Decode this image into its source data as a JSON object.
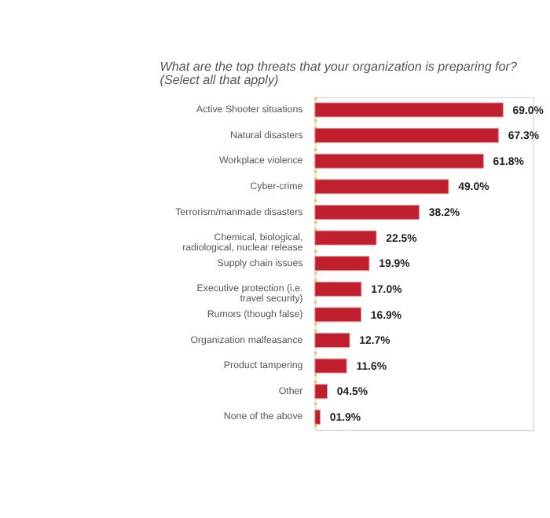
{
  "chart_data": {
    "type": "bar",
    "orientation": "horizontal",
    "title": "What are the top threats that your organization is preparing for?",
    "subtitle": "(Select all that apply)",
    "categories": [
      "Active Shooter situations",
      "Natural disasters",
      "Workplace violence",
      "Cyber-crime",
      "Terrorism/manmade disasters",
      "Chemical, biological, radiological, nuclear release",
      "Supply chain issues",
      "Executive protection (i.e. travel security)",
      "Rumors (though false)",
      "Organization malfeasance",
      "Product tampering",
      "Other",
      "None of the above"
    ],
    "values": [
      69.0,
      67.3,
      61.8,
      49.0,
      38.2,
      22.5,
      19.9,
      17.0,
      16.9,
      12.7,
      11.6,
      4.5,
      1.9
    ],
    "value_labels": [
      "69.0%",
      "67.3%",
      "61.8%",
      "49.0%",
      "38.2%",
      "22.5%",
      "19.9%",
      "17.0%",
      "16.9%",
      "12.7%",
      "11.6%",
      "04.5%",
      "01.9%"
    ],
    "color": "#c0202e",
    "xlim": [
      0,
      80
    ],
    "grid": false
  }
}
